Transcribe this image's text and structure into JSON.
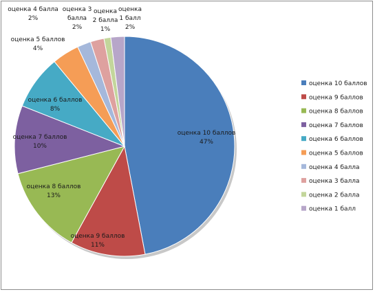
{
  "chart_data": {
    "type": "pie",
    "title": "",
    "legend_position": "right",
    "slices": [
      {
        "name": "оценка 10 баллов",
        "value": 47,
        "label": "47%",
        "color": "#4A7EBB"
      },
      {
        "name": "оценка 9 баллов",
        "value": 11,
        "label": "11%",
        "color": "#BE4B48"
      },
      {
        "name": "оценка 8 баллов",
        "value": 13,
        "label": "13%",
        "color": "#98B954"
      },
      {
        "name": "оценка 7 баллов",
        "value": 10,
        "label": "10%",
        "color": "#7D60A0"
      },
      {
        "name": "оценка 6 баллов",
        "value": 8,
        "label": "8%",
        "color": "#46AAC5"
      },
      {
        "name": "оценка 5 баллов",
        "value": 4,
        "label": "4%",
        "color": "#F59D56"
      },
      {
        "name": "оценка 4 балла",
        "value": 2,
        "label": "2%",
        "color": "#A5B8DB"
      },
      {
        "name": "оценка 3 балла",
        "value": 2,
        "label": "2%",
        "color": "#DEA19F"
      },
      {
        "name": "оценка 2 балла",
        "value": 1,
        "label": "1%",
        "color": "#C3D69B"
      },
      {
        "name": "оценка 1 балл",
        "value": 2,
        "label": "2%",
        "color": "#B7A6C9"
      }
    ]
  }
}
